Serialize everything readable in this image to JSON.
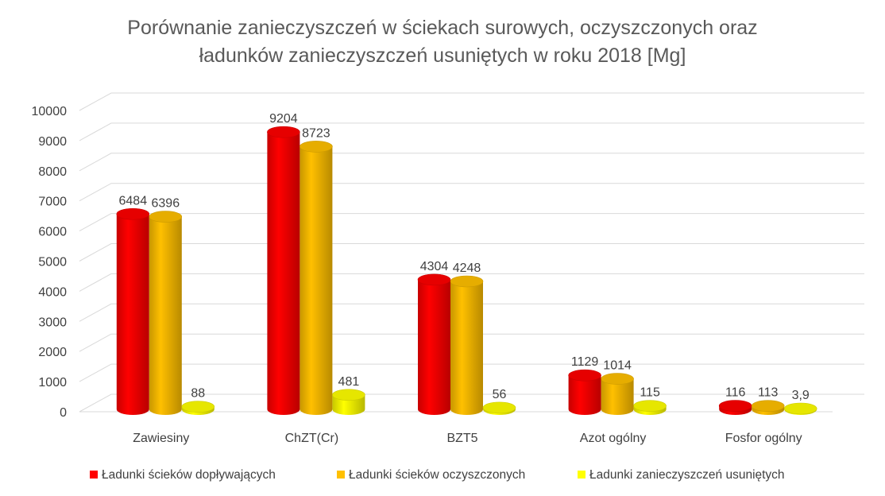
{
  "chart_data": {
    "type": "bar",
    "title_lines": [
      "Porównanie zanieczyszczeń w ściekach surowych, oczyszczonych oraz",
      "ładunków zanieczyszczeń usuniętych w roku 2018 [Mg]"
    ],
    "categories": [
      "Zawiesiny",
      "ChZT(Cr)",
      "BZT5",
      "Azot ogólny",
      "Fosfor ogólny"
    ],
    "series": [
      {
        "name": "Ładunki ścieków dopływających",
        "color": "#ff0000",
        "values": [
          6484,
          9204,
          4304,
          1129,
          116
        ],
        "labels": [
          "6484",
          "9204",
          "4304",
          "1129",
          "116"
        ]
      },
      {
        "name": "Ładunki ścieków oczyszczonych",
        "color": "#ffc000",
        "values": [
          6396,
          8723,
          4248,
          1014,
          113
        ],
        "labels": [
          "6396",
          "8723",
          "4248",
          "1014",
          "113"
        ]
      },
      {
        "name": "Ładunki zanieczyszczeń usuniętych",
        "color": "#ffff00",
        "values": [
          88,
          481,
          56,
          115,
          3.9
        ],
        "labels": [
          "88",
          "481",
          "56",
          "115",
          "3,9"
        ]
      }
    ],
    "yticks": [
      0,
      1000,
      2000,
      3000,
      4000,
      5000,
      6000,
      7000,
      8000,
      9000,
      10000
    ],
    "ylim": [
      0,
      10000
    ],
    "grid": true,
    "style": "3d-cylinder",
    "legend": "bottom"
  }
}
